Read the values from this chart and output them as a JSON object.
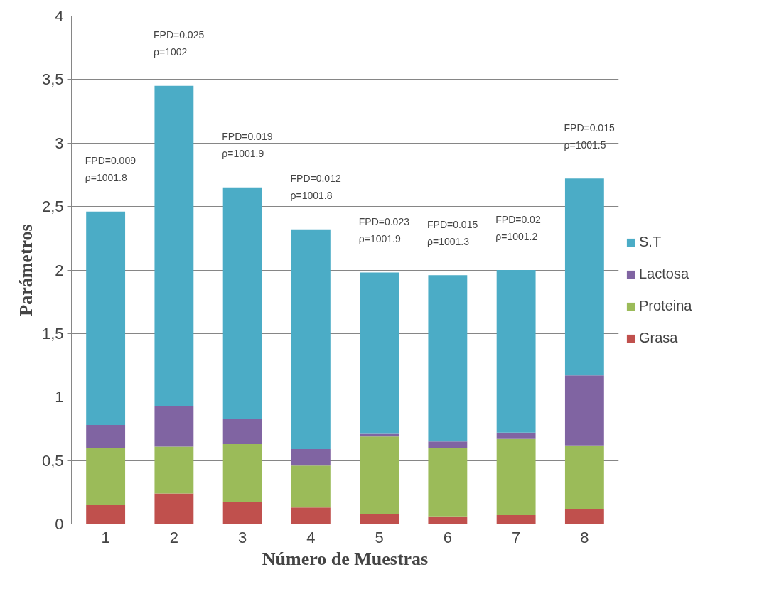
{
  "chart_data": {
    "type": "bar",
    "stacked": true,
    "xlabel": "Número de Muestras",
    "ylabel": "Parámetros",
    "categories": [
      "1",
      "2",
      "3",
      "4",
      "5",
      "6",
      "7",
      "8"
    ],
    "series": [
      {
        "name": "Grasa",
        "color": "#c0504d",
        "values": [
          0.15,
          0.24,
          0.17,
          0.13,
          0.08,
          0.06,
          0.07,
          0.12
        ]
      },
      {
        "name": "Proteina",
        "color": "#9bbb59",
        "values": [
          0.45,
          0.37,
          0.46,
          0.33,
          0.61,
          0.54,
          0.6,
          0.5
        ]
      },
      {
        "name": "Lactosa",
        "color": "#8064a2",
        "values": [
          0.18,
          0.32,
          0.2,
          0.13,
          0.02,
          0.05,
          0.05,
          0.55
        ]
      },
      {
        "name": "S.T",
        "color": "#4bacc6",
        "values": [
          1.68,
          2.52,
          1.82,
          1.73,
          1.27,
          1.31,
          1.28,
          1.55
        ]
      }
    ],
    "ylim": [
      0,
      4
    ],
    "yticks": [
      0,
      {
        "value": 0.5,
        "label": "0,5"
      },
      1,
      {
        "value": 1.5,
        "label": "1,5"
      },
      2,
      {
        "value": 2.5,
        "label": "2,5"
      },
      3,
      {
        "value": 3.5,
        "label": "3,5"
      },
      4
    ],
    "grid": "y",
    "legend": "right",
    "annotations": [
      "FPD=0.009\nρ=1001.8",
      "FPD=0.025\nρ=1002",
      "FPD=0.019\nρ=1001.9",
      "FPD=0.012\nρ=1001.8",
      "FPD=0.023\nρ=1001.9",
      "FPD=0.015\nρ=1001.3",
      "FPD=0.02\nρ=1001.2",
      "FPD=0.015\nρ=1001.5"
    ]
  }
}
